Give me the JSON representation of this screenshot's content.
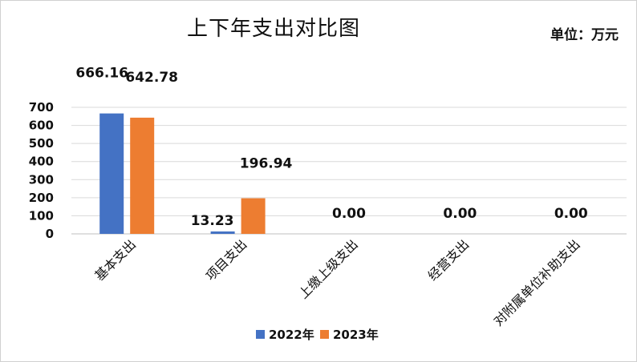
{
  "chart_data": {
    "type": "bar",
    "title": "上下年支出对比图",
    "unit_label": "单位：万元",
    "categories": [
      "基本支出",
      "项目支出",
      "上缴上级支出",
      "经营支出",
      "对附属单位补助支出"
    ],
    "series": [
      {
        "name": "2022年",
        "color": "#4472C4",
        "values": [
          666.16,
          13.23,
          0.0,
          0.0,
          0.0
        ]
      },
      {
        "name": "2023年",
        "color": "#ED7D31",
        "values": [
          642.78,
          196.94,
          0.0,
          0.0,
          0.0
        ]
      }
    ],
    "data_labels": [
      "666.16",
      "642.78",
      "13.23",
      "196.94",
      "0.00",
      "0.00",
      "0.00"
    ],
    "ylim": [
      0,
      700
    ],
    "yticks": [
      "0",
      "100",
      "200",
      "300",
      "400",
      "500",
      "600",
      "700"
    ],
    "grid": true,
    "legend_position": "bottom"
  }
}
